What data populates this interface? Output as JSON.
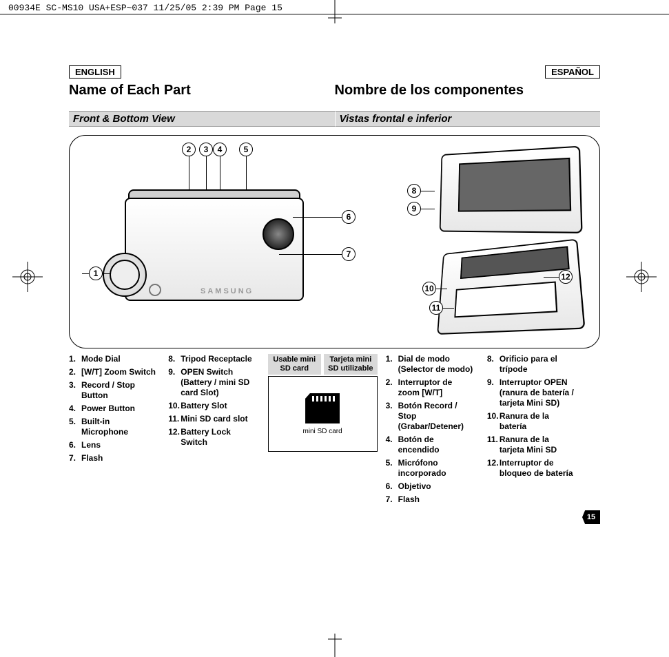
{
  "meta": {
    "header": "00934E SC-MS10 USA+ESP~037  11/25/05 2:39 PM  Page 15"
  },
  "lang": {
    "en": "ENGLISH",
    "es": "ESPAÑOL"
  },
  "title": {
    "en": "Name of Each Part",
    "es": "Nombre de los componentes"
  },
  "subtitle": {
    "en": "Front & Bottom View",
    "es": "Vistas frontal e inferior"
  },
  "brand": "SAMSUNG",
  "callouts": [
    "1",
    "2",
    "3",
    "4",
    "5",
    "6",
    "7",
    "8",
    "9",
    "10",
    "11",
    "12"
  ],
  "parts_en": [
    {
      "n": "1.",
      "t": "Mode Dial"
    },
    {
      "n": "2.",
      "t": "[W/T] Zoom Switch"
    },
    {
      "n": "3.",
      "t": "Record / Stop",
      "s": "Button"
    },
    {
      "n": "4.",
      "t": "Power Button"
    },
    {
      "n": "5.",
      "t": "Built-in",
      "s": "Microphone"
    },
    {
      "n": "6.",
      "t": "Lens"
    },
    {
      "n": "7.",
      "t": "Flash"
    }
  ],
  "parts_en2": [
    {
      "n": "8.",
      "t": "Tripod Receptacle"
    },
    {
      "n": "9.",
      "t": "OPEN Switch",
      "s": "(Battery / mini SD card Slot)"
    },
    {
      "n": "10.",
      "t": "Battery Slot"
    },
    {
      "n": "11.",
      "t": "Mini SD card slot"
    },
    {
      "n": "12.",
      "t": "Battery Lock",
      "s": "Switch"
    }
  ],
  "parts_es": [
    {
      "n": "1.",
      "t": "Dial de modo",
      "s": "(Selector de modo)"
    },
    {
      "n": "2.",
      "t": "Interruptor de",
      "s": "zoom [W/T]"
    },
    {
      "n": "3.",
      "t": "Botón Record /",
      "s": "Stop (Grabar/Detener)"
    },
    {
      "n": "4.",
      "t": "Botón de",
      "s": "encendido"
    },
    {
      "n": "5.",
      "t": "Micrófono",
      "s": "incorporado"
    },
    {
      "n": "6.",
      "t": "Objetivo"
    },
    {
      "n": "7.",
      "t": "Flash"
    }
  ],
  "parts_es2": [
    {
      "n": "8.",
      "t": "Orificio para el",
      "s": "trípode"
    },
    {
      "n": "9.",
      "t": "Interruptor OPEN",
      "s": "(ranura de batería / tarjeta Mini SD)"
    },
    {
      "n": "10.",
      "t": "Ranura de la",
      "s": "batería"
    },
    {
      "n": "11.",
      "t": "Ranura de la",
      "s": "tarjeta Mini SD"
    },
    {
      "n": "12.",
      "t": "Interruptor de",
      "s": "bloqueo de batería"
    }
  ],
  "sd": {
    "head_en": "Usable mini SD card",
    "head_es": "Tarjeta mini SD utilizable",
    "label": "mini SD card"
  },
  "page": "15",
  "colors": {
    "gray_bar": "#d9d9d9",
    "border": "#000000"
  }
}
